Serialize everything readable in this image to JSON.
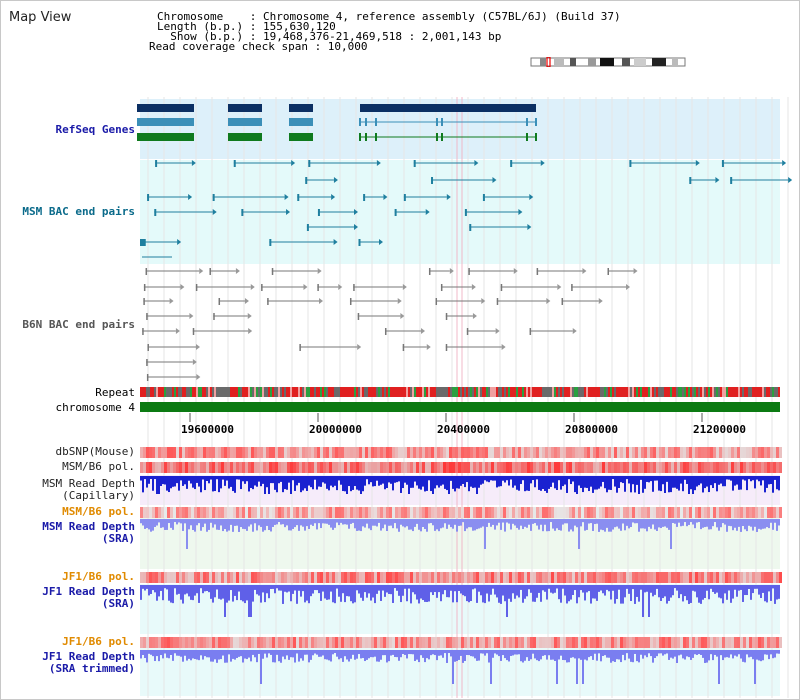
{
  "header": {
    "title": "Map View",
    "info_lines": [
      "Chromosome    : Chromosome 4, reference assembly (C57BL/6J) (Build 37)",
      "Length (b.p.) : 155,630,120",
      "  Show (b.p.) : 19,468,376-21,469,518 : 2,001,143 bp",
      "Read coverage check span : 10,000"
    ]
  },
  "tracks": {
    "refseq": "RefSeq Genes",
    "msm_bac": "MSM BAC end pairs",
    "b6n_bac": "B6N BAC end pairs",
    "repeat": "Repeat",
    "chromosome": "chromosome 4",
    "dbsnp": "dbSNP(Mouse)",
    "msm_pol": "MSM/B6 pol.",
    "msm_depth_cap_1": "MSM Read Depth",
    "msm_depth_cap_2": "(Capillary)",
    "msm_pol2": "MSM/B6 pol.",
    "msm_sra_1": "MSM Read Depth",
    "msm_sra_2": "(SRA)",
    "jf1_pol": "JF1/B6 pol.",
    "jf1_sra_1": "JF1 Read Depth",
    "jf1_sra_2": "(SRA)",
    "jf1_pol2": "JF1/B6 pol.",
    "jf1_trim_1": "JF1 Read Depth",
    "jf1_trim_2": "(SRA trimmed)"
  },
  "axis": {
    "ticks": [
      "19600000",
      "20000000",
      "20400000",
      "20800000",
      "21200000"
    ]
  },
  "colors": {
    "refseq_bg": "#ddf0fa",
    "msm_bac_bg": "#e4fafa",
    "navy": "#0b2f63",
    "teal": "#3b8fb8",
    "green": "#0f7a1e",
    "chrom_green": "#0b7a12",
    "label_navy": "#1a1aa8",
    "label_orange": "#e08a00"
  }
}
